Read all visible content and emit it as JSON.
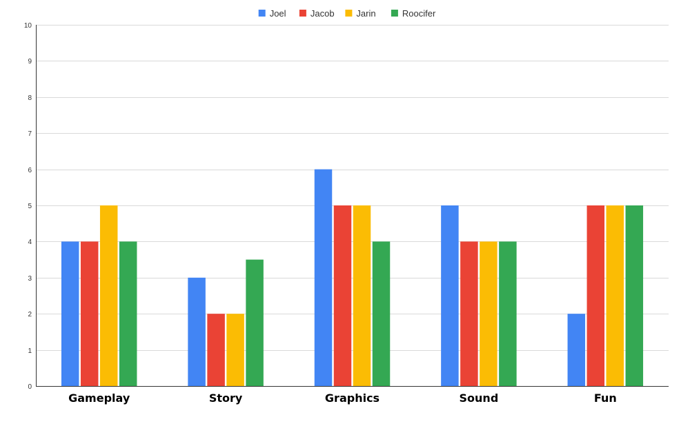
{
  "chart_data": {
    "type": "bar",
    "title": "",
    "xlabel": "",
    "ylabel": "",
    "categories": [
      "Gameplay",
      "Story",
      "Graphics",
      "Sound",
      "Fun"
    ],
    "series": [
      {
        "name": "Joel",
        "color": "#4285F4",
        "values": [
          4,
          3,
          6,
          5,
          2
        ]
      },
      {
        "name": "Jacob",
        "color": "#EA4335",
        "values": [
          4,
          2,
          5,
          4,
          5
        ]
      },
      {
        "name": "Jarin",
        "color": "#FBBC04",
        "values": [
          5,
          2,
          5,
          4,
          5
        ]
      },
      {
        "name": "Roocifer",
        "color": "#34A853",
        "values": [
          4,
          3.5,
          4,
          4,
          5
        ]
      }
    ],
    "ylim": [
      0,
      10
    ],
    "yticks": [
      0,
      1,
      2,
      3,
      4,
      5,
      6,
      7,
      8,
      9,
      10
    ],
    "grid": true,
    "legend_position": "top-center"
  }
}
